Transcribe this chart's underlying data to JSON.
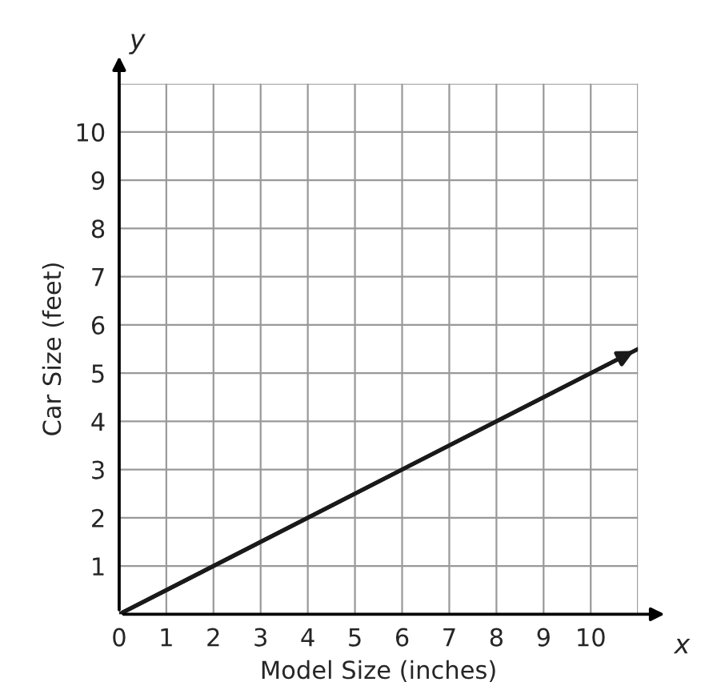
{
  "chart_data": {
    "type": "line",
    "xlabel": "Model Size (inches)",
    "ylabel": "Car Size (feet)",
    "x": [
      0,
      11
    ],
    "series": [
      {
        "color": "#1a1a1a",
        "values": [
          0,
          5.5
        ]
      }
    ],
    "xlim": [
      0,
      11
    ],
    "ylim": [
      0,
      11
    ],
    "xticks": [
      0,
      1,
      2,
      3,
      4,
      5,
      6,
      7,
      8,
      9,
      10,
      {
        "value": 11,
        "label": null
      }
    ],
    "yticks": [
      {
        "value": 0,
        "label": null
      },
      1,
      2,
      3,
      4,
      5,
      6,
      7,
      8,
      9,
      10,
      {
        "value": 11,
        "label": null
      }
    ],
    "grid": true,
    "marker": "none",
    "line_style": "solid",
    "annotations": [
      "x",
      "y"
    ]
  }
}
